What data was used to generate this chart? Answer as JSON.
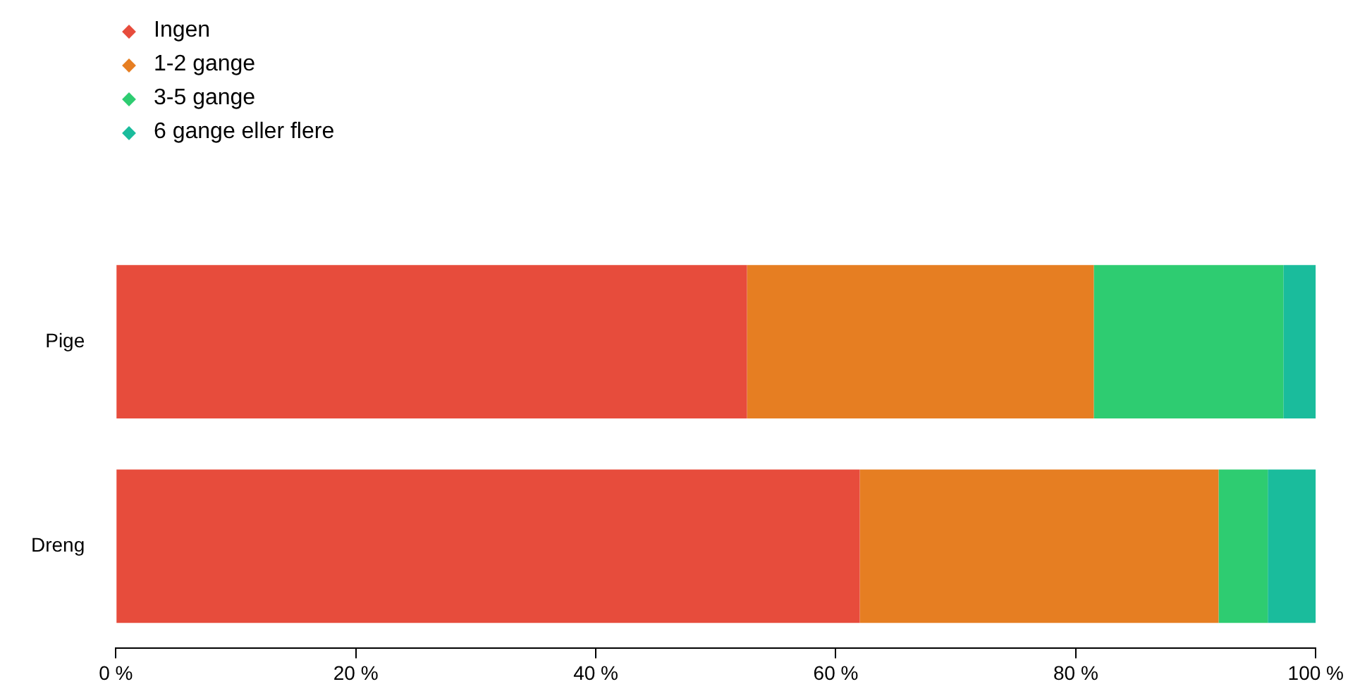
{
  "chart_data": {
    "type": "bar",
    "orientation": "horizontal",
    "stacked": true,
    "categories": [
      "Pige",
      "Dreng"
    ],
    "series": [
      {
        "name": "Ingen",
        "color": "#e74c3c",
        "values": [
          52.6,
          62.0
        ]
      },
      {
        "name": "1-2 gange",
        "color": "#e67e22",
        "values": [
          28.9,
          29.9
        ]
      },
      {
        "name": "3-5 gange",
        "color": "#2ecc71",
        "values": [
          15.8,
          4.1
        ]
      },
      {
        "name": "6 gange eller flere",
        "color": "#1abc9c",
        "values": [
          2.7,
          4.0
        ]
      }
    ],
    "xlim": [
      0,
      100
    ],
    "xticks": [
      {
        "value": 0,
        "label": "0 %"
      },
      {
        "value": 20,
        "label": "20 %"
      },
      {
        "value": 40,
        "label": "40 %"
      },
      {
        "value": 60,
        "label": "60 %"
      },
      {
        "value": 80,
        "label": "80 %"
      },
      {
        "value": 100,
        "label": "100 %"
      }
    ],
    "grid": false,
    "legend": "top left",
    "marker": "diamond"
  }
}
